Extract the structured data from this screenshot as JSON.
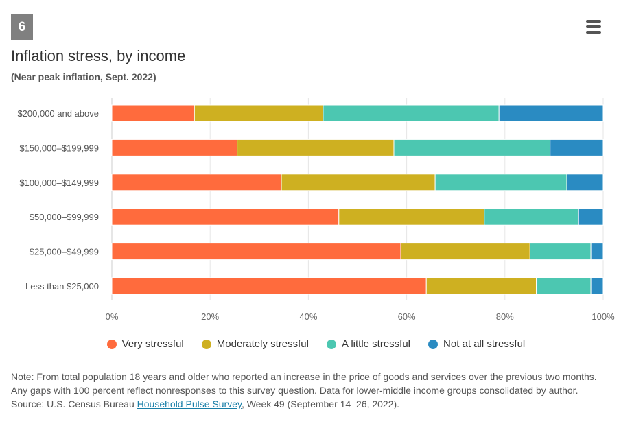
{
  "badge": "6",
  "chart_data": {
    "type": "bar",
    "orientation": "horizontal",
    "stacked": true,
    "title": "Inflation stress, by income",
    "subtitle": "(Near peak inflation, Sept. 2022)",
    "categories": [
      "$200,000 and above",
      "$150,000–$199,999",
      "$100,000–$149,999",
      "$50,000–$99,999",
      "$25,000–$49,999",
      "Less than $25,000"
    ],
    "series": [
      {
        "name": "Very stressful",
        "color": "#ff6b3d",
        "values": [
          16.8,
          25.5,
          34.5,
          46.2,
          58.8,
          64.0
        ]
      },
      {
        "name": "Moderately stressful",
        "color": "#ceb021",
        "values": [
          26.2,
          31.9,
          31.3,
          29.6,
          26.3,
          22.4
        ]
      },
      {
        "name": "A little stressful",
        "color": "#4cc7b1",
        "values": [
          35.8,
          31.8,
          26.8,
          19.2,
          12.4,
          11.1
        ]
      },
      {
        "name": "Not at all stressful",
        "color": "#2a8bc2",
        "values": [
          21.2,
          10.8,
          7.4,
          5.0,
          2.5,
          2.5
        ]
      }
    ],
    "xlim": [
      0,
      100
    ],
    "x_ticks": [
      "0%",
      "20%",
      "40%",
      "60%",
      "80%",
      "100%"
    ],
    "x_tick_values": [
      0,
      20,
      40,
      60,
      80,
      100
    ],
    "grid": true,
    "legend_position": "bottom"
  },
  "notes": {
    "note": "Note: From total population 18 years and older who reported an increase in the price of goods and services over the previous two months. Any gaps with 100 percent reflect nonresponses to this survey question. Data for lower-middle income groups consolidated by author.",
    "source_prefix": "Source: U.S. Census Bureau ",
    "source_link": "Household Pulse Survey",
    "source_suffix": ", Week 49 (September 14–26, 2022)."
  }
}
